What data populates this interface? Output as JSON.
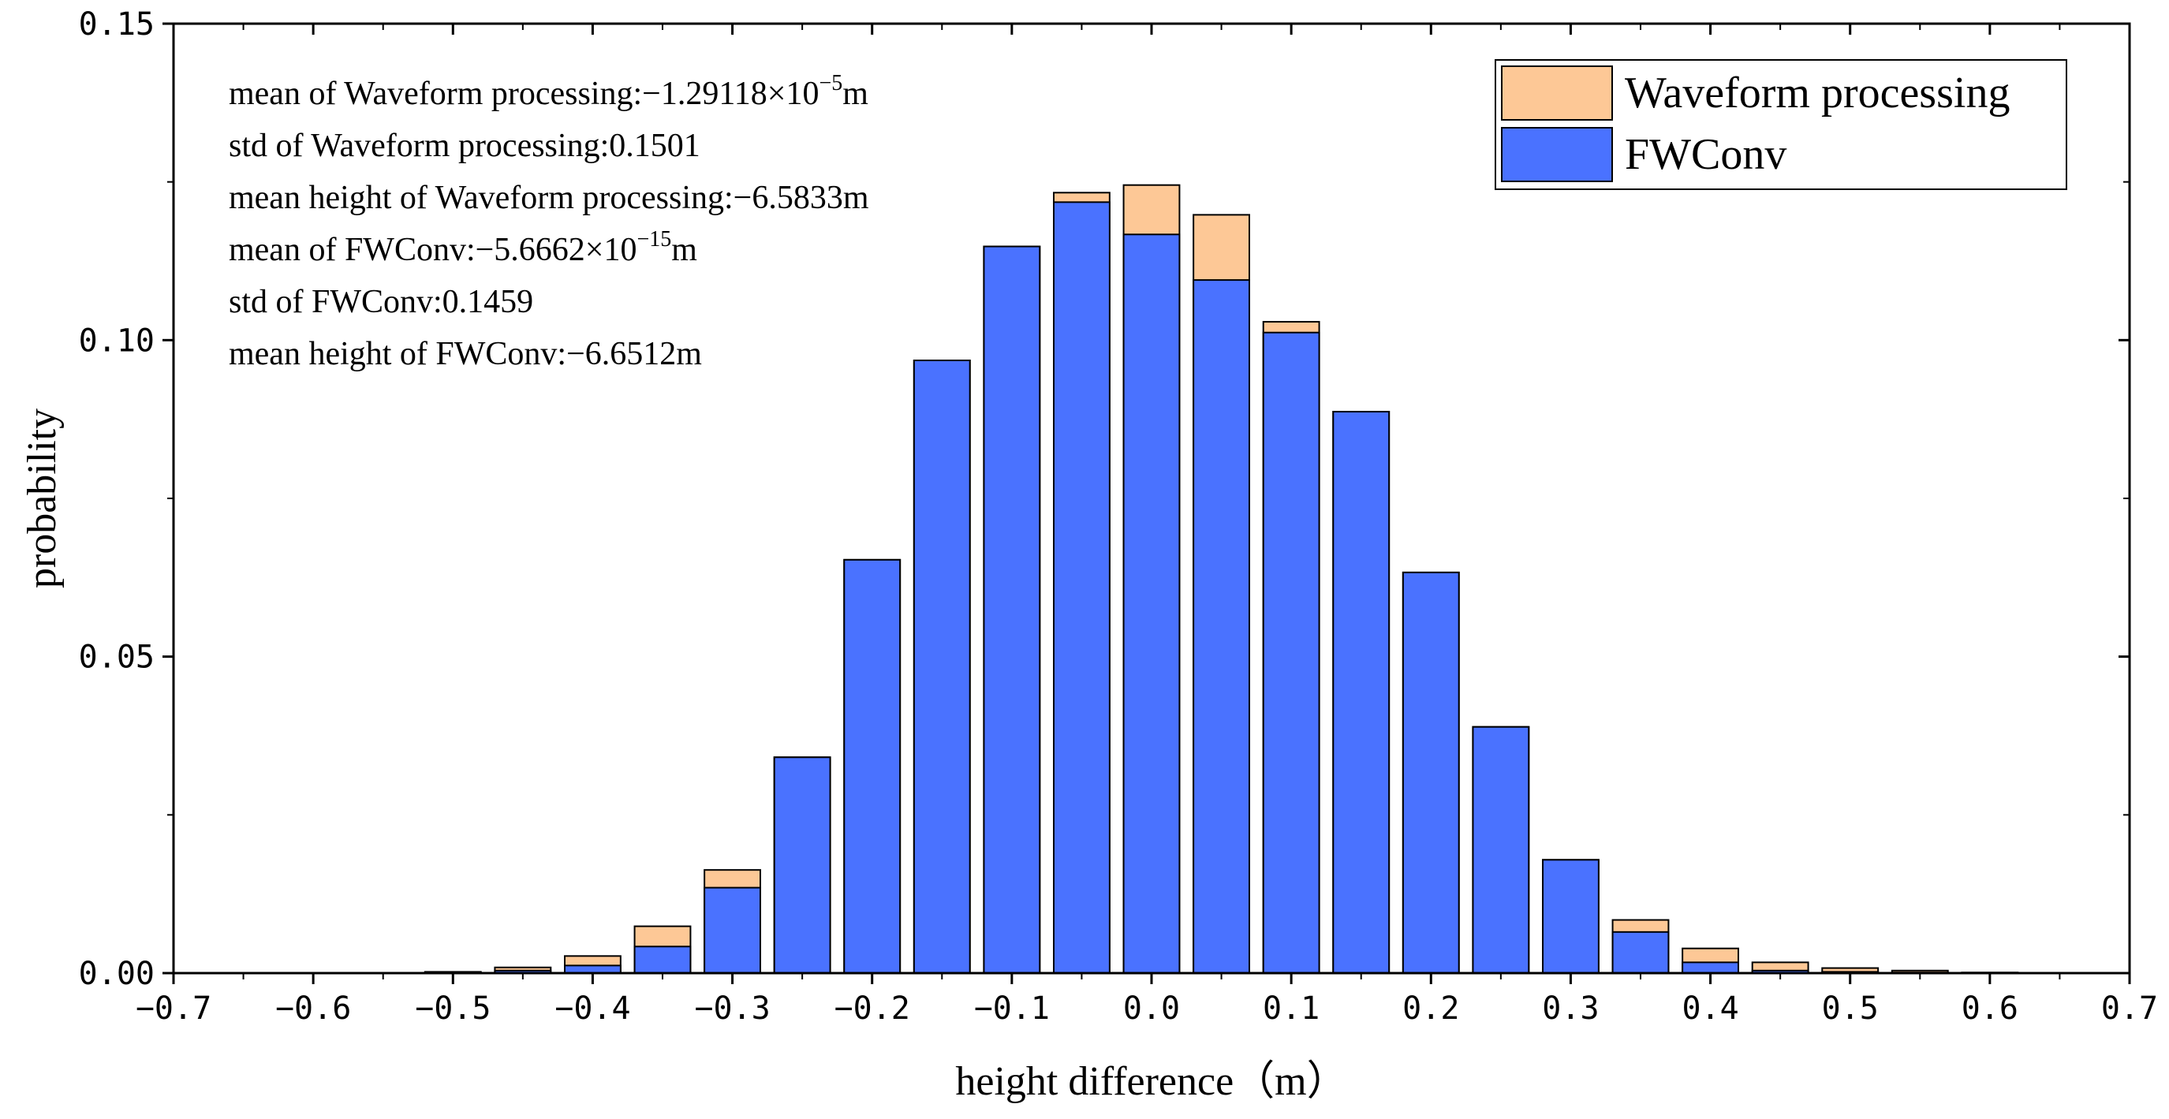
{
  "chart_data": {
    "type": "bar",
    "title": "",
    "xlabel": "height difference（m）",
    "ylabel": "probability",
    "xlim": [
      -0.7,
      0.7
    ],
    "ylim": [
      0.0,
      0.15
    ],
    "x_ticks": [
      -0.7,
      -0.6,
      -0.5,
      -0.4,
      -0.3,
      -0.2,
      -0.1,
      0.0,
      0.1,
      0.2,
      0.3,
      0.4,
      0.5,
      0.6,
      0.7
    ],
    "x_tick_labels": [
      "−0.7",
      "−0.6",
      "−0.5",
      "−0.4",
      "−0.3",
      "−0.2",
      "−0.1",
      "0.0",
      "0.1",
      "0.2",
      "0.3",
      "0.4",
      "0.5",
      "0.6",
      "0.7"
    ],
    "y_ticks": [
      0.0,
      0.05,
      0.1,
      0.15
    ],
    "y_tick_labels": [
      "0.00",
      "0.05",
      "0.10",
      "0.15"
    ],
    "bin_width": 0.05,
    "bar_width_fraction": 0.8,
    "x": [
      -0.65,
      -0.6,
      -0.55,
      -0.5,
      -0.45,
      -0.4,
      -0.35,
      -0.3,
      -0.25,
      -0.2,
      -0.15,
      -0.1,
      -0.05,
      0.0,
      0.05,
      0.1,
      0.15,
      0.2,
      0.25,
      0.3,
      0.35,
      0.4,
      0.45,
      0.5,
      0.55,
      0.6,
      0.65
    ],
    "series": [
      {
        "name": "Waveform processing",
        "color": "#fdc896",
        "values": [
          0.0,
          0.0,
          0.0,
          0.0002,
          0.0009,
          0.0027,
          0.0074,
          0.0163,
          0.0341,
          0.0653,
          0.0968,
          0.1148,
          0.1233,
          0.1245,
          0.1198,
          0.1029,
          0.0887,
          0.0633,
          0.0389,
          0.0179,
          0.0084,
          0.0039,
          0.0017,
          0.0008,
          0.0004,
          0.0001,
          0.0
        ]
      },
      {
        "name": "FWConv",
        "color": "#4a72ff",
        "values": [
          0.0,
          0.0,
          0.0,
          0.0001,
          0.0004,
          0.0012,
          0.0042,
          0.0135,
          0.0341,
          0.0653,
          0.0968,
          0.1148,
          0.1218,
          0.1167,
          0.1095,
          0.1012,
          0.0887,
          0.0633,
          0.0389,
          0.0179,
          0.0065,
          0.0017,
          0.0004,
          0.0002,
          0.0001,
          0.0,
          0.0
        ]
      }
    ],
    "legend": {
      "position": "top-right",
      "entries": [
        "Waveform processing",
        "FWConv"
      ]
    },
    "annotations": [
      {
        "prefix": "mean of Waveform processing:−1.29118×10",
        "exponent": "−5",
        "suffix": "m"
      },
      {
        "prefix": "std of Waveform processing:0.1501",
        "exponent": "",
        "suffix": ""
      },
      {
        "prefix": "mean height of Waveform processing:−6.5833m",
        "exponent": "",
        "suffix": ""
      },
      {
        "prefix": "mean of FWConv:−5.6662×10",
        "exponent": "−15",
        "suffix": "m"
      },
      {
        "prefix": "std of FWConv:0.1459",
        "exponent": "",
        "suffix": ""
      },
      {
        "prefix": "mean height of FWConv:−6.6512m",
        "exponent": "",
        "suffix": ""
      }
    ],
    "grid": false
  }
}
